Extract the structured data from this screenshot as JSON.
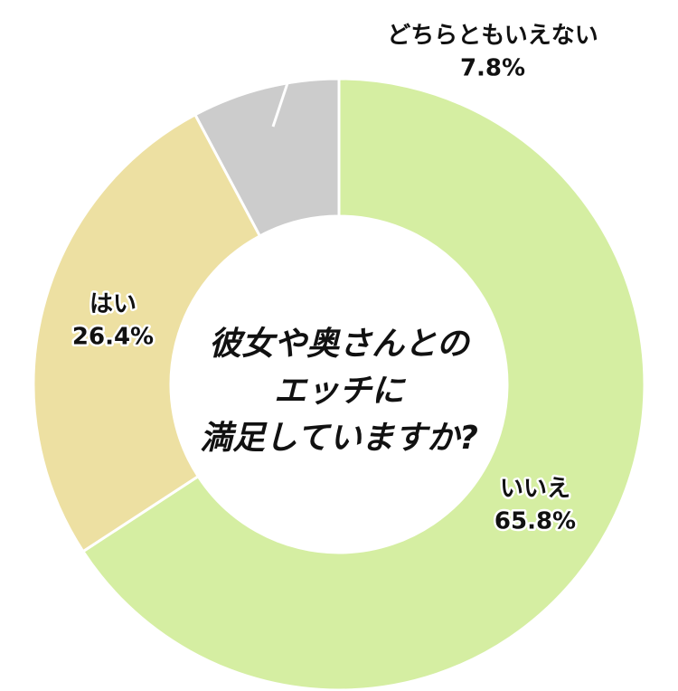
{
  "chart_data": {
    "type": "donut",
    "title_lines": [
      "彼女や奥さんとの",
      "エッチに",
      "満足していますか?"
    ],
    "categories": [
      "いいえ",
      "はい",
      "どちらともいえない"
    ],
    "values": [
      65.8,
      26.4,
      7.8
    ],
    "value_labels": [
      "65.8%",
      "26.4%",
      "7.8%"
    ],
    "colors": [
      "#d5eea2",
      "#ede0a2",
      "#cccccc"
    ]
  }
}
